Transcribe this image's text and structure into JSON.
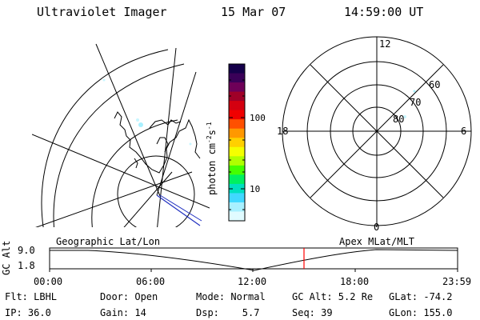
{
  "header": {
    "instrument": "Ultraviolet Imager",
    "date": "15 Mar 07",
    "time": "14:59:00 UT"
  },
  "colorbar": {
    "units_prefix": "photon cm",
    "units_sup1": "-2",
    "units_mid": "s",
    "units_sup2": "-1",
    "tick_100": "100",
    "tick_10": "10",
    "colors_top_to_bottom": [
      "#15004a",
      "#3a0058",
      "#6e0058",
      "#a00028",
      "#d40010",
      "#f00000",
      "#ff5000",
      "#ff9800",
      "#ffd000",
      "#f4ff00",
      "#b0ff00",
      "#44ff00",
      "#00f060",
      "#00e0c0",
      "#40d8ff",
      "#a8f0ff",
      "#e0fbff"
    ]
  },
  "polar_plot": {
    "label_12": "12",
    "label_18": "18",
    "label_6": "6",
    "label_0": "0",
    "label_60": "60",
    "label_70": "70",
    "label_80": "80"
  },
  "timeline": {
    "left_title": "Geographic Lat/Lon",
    "right_title": "Apex MLat/MLT",
    "y_axis_label": "GC Alt",
    "y_top": "9.0",
    "y_bottom": "1.8",
    "ticks": [
      "00:00",
      "06:00",
      "12:00",
      "18:00",
      "23:59"
    ],
    "current_time_marker_color": "#ff0000"
  },
  "status": {
    "row1": {
      "flt": "Flt: LBHL",
      "door": "Door: Open",
      "mode": "Mode: Normal",
      "gc_alt": "GC Alt: 5.2 Re",
      "glat": "GLat: -74.2"
    },
    "row2": {
      "ip": "IP: 36.0",
      "gain": "Gain: 14",
      "dsp": "Dsp:    5.7",
      "seq": "Seq: 39",
      "glon": "GLon: 155.0"
    }
  }
}
